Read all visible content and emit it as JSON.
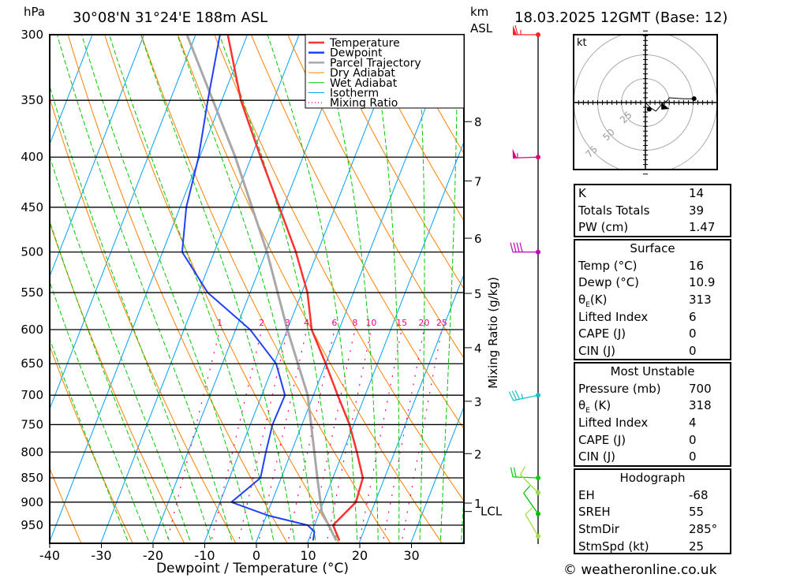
{
  "header": {
    "unit_left": "hPa",
    "location": "30°08'N 31°24'E 188m ASL",
    "unit_km": "km",
    "unit_asl": "ASL",
    "datetime": "18.03.2025 12GMT (Base: 12)"
  },
  "footer": {
    "copyright": "© weatheronline.co.uk"
  },
  "chart_data": {
    "type": "skew-t",
    "xlabel": "Dewpoint / Temperature (°C)",
    "ylabel": "hPa",
    "right_label": "Mixing Ratio (g/kg)",
    "pressure_ticks": [
      300,
      350,
      400,
      450,
      500,
      550,
      600,
      650,
      700,
      750,
      800,
      850,
      900,
      950
    ],
    "temp_ticks": [
      -40,
      -30,
      -20,
      -10,
      0,
      10,
      20,
      30
    ],
    "pressure_range": [
      300,
      990
    ],
    "legend": [
      "Temperature",
      "Dewpoint",
      "Parcel Trajectory",
      "Dry Adiabat",
      "Wet Adiabat",
      "Isotherm",
      "Mixing Ratio"
    ],
    "legend_placement": "top-right",
    "mixing_ratio_labels": [
      1,
      2,
      3,
      4,
      6,
      8,
      10,
      15,
      20,
      25
    ],
    "km_axis": [
      {
        "label": "8",
        "p": 368
      },
      {
        "label": "7",
        "p": 423
      },
      {
        "label": "6",
        "p": 484
      },
      {
        "label": "5",
        "p": 551
      },
      {
        "label": "4",
        "p": 626
      },
      {
        "label": "3",
        "p": 710
      },
      {
        "label": "2",
        "p": 803
      },
      {
        "label": "1",
        "p": 902
      },
      {
        "label": "LCL",
        "p": 920
      }
    ],
    "temperature": [
      [
        985,
        16.0
      ],
      [
        950,
        13.6
      ],
      [
        900,
        16.3
      ],
      [
        850,
        15.8
      ],
      [
        800,
        12.7
      ],
      [
        750,
        9.2
      ],
      [
        700,
        4.7
      ],
      [
        650,
        0.0
      ],
      [
        600,
        -5.3
      ],
      [
        550,
        -8.9
      ],
      [
        500,
        -14.2
      ],
      [
        450,
        -20.8
      ],
      [
        400,
        -28.2
      ],
      [
        350,
        -36.3
      ],
      [
        300,
        -43.8
      ]
    ],
    "dewpoint": [
      [
        985,
        10.9
      ],
      [
        965,
        10.5
      ],
      [
        950,
        8.7
      ],
      [
        929,
        0.4
      ],
      [
        900,
        -7.8
      ],
      [
        850,
        -4.0
      ],
      [
        800,
        -4.9
      ],
      [
        750,
        -5.7
      ],
      [
        700,
        -5.5
      ],
      [
        650,
        -9.6
      ],
      [
        600,
        -17.2
      ],
      [
        550,
        -28.2
      ],
      [
        500,
        -36.2
      ],
      [
        450,
        -38.8
      ],
      [
        400,
        -40.2
      ],
      [
        350,
        -42.7
      ],
      [
        300,
        -45.3
      ]
    ],
    "parcel": [
      [
        985,
        15.4
      ],
      [
        920,
        10.4
      ],
      [
        850,
        7.0
      ],
      [
        700,
        -1.1
      ],
      [
        600,
        -10.0
      ],
      [
        500,
        -19.8
      ],
      [
        400,
        -33.1
      ],
      [
        300,
        -51.7
      ]
    ],
    "winds": [
      {
        "p": 300,
        "dir": 270,
        "kt": 65,
        "color": "#ff2020"
      },
      {
        "p": 400,
        "dir": 268,
        "kt": 55,
        "color": "#e0007a"
      },
      {
        "p": 500,
        "dir": 270,
        "kt": 40,
        "color": "#c000c0"
      },
      {
        "p": 700,
        "dir": 258,
        "kt": 35,
        "color": "#10c0c8"
      },
      {
        "p": 850,
        "dir": 272,
        "kt": 20,
        "color": "#00d000"
      },
      {
        "p": 880,
        "dir": 315,
        "kt": 10,
        "color": "#90e040"
      },
      {
        "p": 925,
        "dir": 325,
        "kt": 10,
        "color": "#00c000"
      },
      {
        "p": 975,
        "dir": 330,
        "kt": 10,
        "color": "#a0e040"
      }
    ],
    "hodograph": {
      "unit": "kt",
      "rings": [
        25,
        50,
        75
      ],
      "points": [
        [
          0,
          0
        ],
        [
          6,
          -6
        ],
        [
          11,
          -9
        ],
        [
          17,
          -2
        ],
        [
          23,
          2
        ],
        [
          25,
          5
        ],
        [
          40,
          4
        ],
        [
          51,
          4
        ]
      ],
      "markers": [
        {
          "u": 4,
          "v": -7,
          "shape": "dot"
        },
        {
          "u": 20,
          "v": -5,
          "shape": "triangle"
        },
        {
          "u": 51,
          "v": 4,
          "shape": "dot"
        }
      ]
    }
  },
  "indices": [
    {
      "label": "K",
      "value": "14"
    },
    {
      "label": "Totals Totals",
      "value": "39"
    },
    {
      "label": "PW (cm)",
      "value": "1.47"
    }
  ],
  "surface": {
    "title": "Surface",
    "rows": [
      {
        "label": "Temp (°C)",
        "value": "16"
      },
      {
        "label": "Dewp (°C)",
        "value": "10.9"
      },
      {
        "label": "θ",
        "sub": "E",
        "suffix": "(K)",
        "value": "313"
      },
      {
        "label": "Lifted Index",
        "value": "6"
      },
      {
        "label": "CAPE (J)",
        "value": "0"
      },
      {
        "label": "CIN (J)",
        "value": "0"
      }
    ]
  },
  "unstable": {
    "title": "Most Unstable",
    "rows": [
      {
        "label": "Pressure (mb)",
        "value": "700"
      },
      {
        "label": "θ",
        "sub": "E",
        "suffix": " (K)",
        "value": "318"
      },
      {
        "label": "Lifted Index",
        "value": "4"
      },
      {
        "label": "CAPE (J)",
        "value": "0"
      },
      {
        "label": "CIN (J)",
        "value": "0"
      }
    ]
  },
  "hodo_table": {
    "title": "Hodograph",
    "rows": [
      {
        "label": "EH",
        "value": "-68"
      },
      {
        "label": "SREH",
        "value": "55"
      },
      {
        "label": "StmDir",
        "value": "285°"
      },
      {
        "label": "StmSpd (kt)",
        "value": "25"
      }
    ]
  },
  "colors": {
    "temperature": "#ff3030",
    "dewpoint": "#2040ff",
    "parcel": "#a8a8a8",
    "dry": "#ff8000",
    "wet": "#00c800",
    "isotherm": "#00a0ff",
    "mixing": "#ff0080"
  }
}
